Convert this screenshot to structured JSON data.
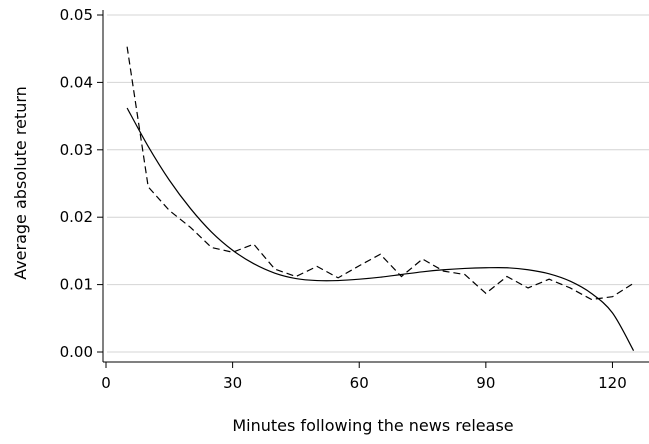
{
  "chart_data": {
    "type": "line",
    "xlabel": "Minutes following the news release",
    "ylabel": "Average absolute return",
    "xlim": [
      0,
      127
    ],
    "ylim": [
      0,
      0.05
    ],
    "xticks": [
      0,
      30,
      60,
      90,
      120
    ],
    "yticks": [
      0.0,
      0.01,
      0.02,
      0.03,
      0.04,
      0.05
    ],
    "xtick_labels": [
      "0",
      "30",
      "60",
      "90",
      "120"
    ],
    "ytick_labels": [
      "0.00",
      "0.01",
      "0.02",
      "0.03",
      "0.04",
      "0.05"
    ],
    "grid": "horizontal",
    "legend": "none",
    "series": [
      {
        "style": "dashed",
        "color": "#000000",
        "x": [
          5,
          10,
          15,
          20,
          25,
          30,
          35,
          40,
          45,
          50,
          55,
          60,
          65,
          70,
          75,
          80,
          85,
          90,
          95,
          100,
          105,
          110,
          115,
          120,
          125
        ],
        "y": [
          0.0453,
          0.0245,
          0.021,
          0.0185,
          0.0155,
          0.0148,
          0.016,
          0.0123,
          0.0112,
          0.0127,
          0.011,
          0.0128,
          0.0145,
          0.0112,
          0.0138,
          0.012,
          0.0115,
          0.0087,
          0.0112,
          0.0095,
          0.0108,
          0.0095,
          0.0078,
          0.0082,
          0.0102
        ]
      },
      {
        "style": "solid",
        "color": "#000000",
        "x": [
          5,
          10,
          15,
          20,
          25,
          30,
          35,
          40,
          45,
          50,
          55,
          60,
          65,
          70,
          75,
          80,
          85,
          90,
          95,
          100,
          105,
          110,
          115,
          120,
          125
        ],
        "y": [
          0.0362,
          0.0305,
          0.0255,
          0.0213,
          0.0178,
          0.0151,
          0.0131,
          0.0117,
          0.0109,
          0.0106,
          0.0106,
          0.0108,
          0.0111,
          0.0115,
          0.0119,
          0.0122,
          0.0124,
          0.0125,
          0.0125,
          0.0122,
          0.0116,
          0.0105,
          0.0087,
          0.0058,
          0.0002
        ]
      }
    ]
  }
}
